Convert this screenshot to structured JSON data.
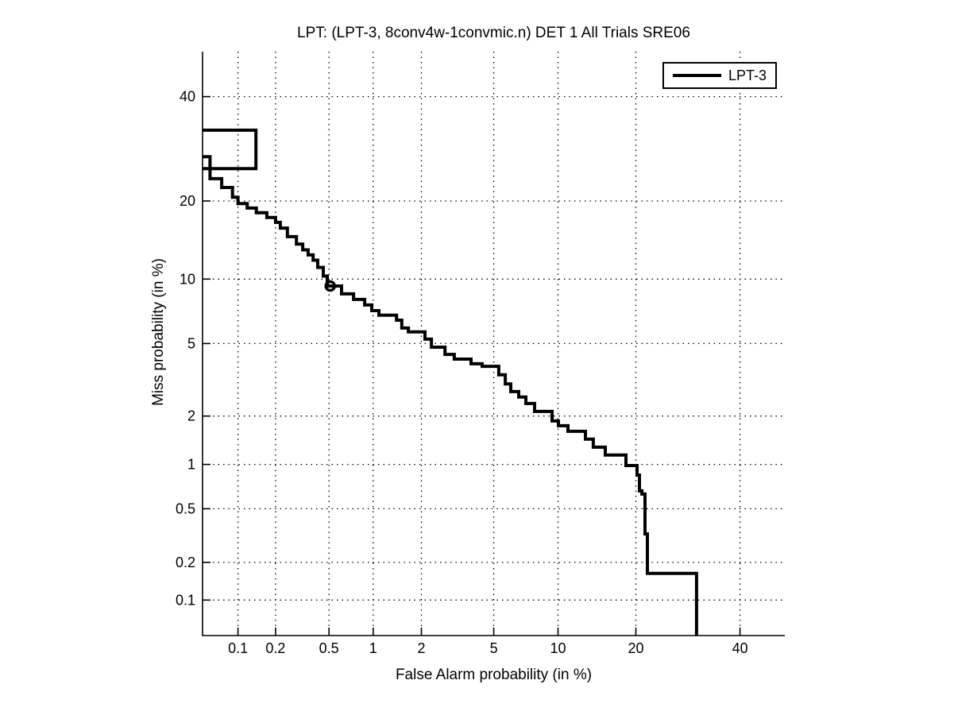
{
  "chart_data": {
    "type": "line",
    "chart_kind": "DET curve (normal-deviate / probit scale on both axes)",
    "title": "LPT: (LPT-3, 8conv4w-1convmic.n) DET 1 All Trials SRE06",
    "xlabel": "False Alarm probability (in %)",
    "ylabel": "Miss probability (in %)",
    "axis_range_pct": {
      "x": [
        0.05,
        50
      ],
      "y": [
        0.05,
        50
      ]
    },
    "x_tick_values": [
      0.1,
      0.2,
      0.5,
      1,
      2,
      5,
      10,
      20,
      40
    ],
    "x_tick_labels": [
      "0.1",
      "0.2",
      "0.5",
      "1",
      "2",
      "5",
      "10",
      "20",
      "40"
    ],
    "y_tick_values": [
      40,
      20,
      10,
      5,
      2,
      1,
      0.5,
      0.2,
      0.1
    ],
    "y_tick_labels": [
      "40",
      "20",
      "10",
      "5",
      "2",
      "1",
      "0.5",
      "0.2",
      "0.1"
    ],
    "grid": "dotted",
    "legend": {
      "position": "top-right",
      "entries": [
        {
          "label": "LPT-3",
          "color": "#000000"
        }
      ]
    },
    "colors": {
      "foreground": "#000000",
      "background": "#ffffff"
    },
    "series": [
      {
        "name": "LPT-3",
        "color": "#000000",
        "line_width": 4,
        "marker": {
          "shape": "circle",
          "fa_pct": 0.51,
          "miss_pct": 9.33
        },
        "clipped_start_box_fa_miss_pct": [
          [
            0.05,
            32.9
          ],
          [
            0.14,
            32.9
          ],
          [
            0.14,
            25.5
          ],
          [
            0.05,
            25.5
          ]
        ],
        "det_points_fa_miss_pct": [
          [
            0.05,
            27.7
          ],
          [
            0.058,
            27.7
          ],
          [
            0.058,
            23.7
          ],
          [
            0.073,
            23.7
          ],
          [
            0.073,
            22.2
          ],
          [
            0.09,
            22.2
          ],
          [
            0.09,
            20.6
          ],
          [
            0.1,
            20.6
          ],
          [
            0.1,
            19.6
          ],
          [
            0.119,
            19.6
          ],
          [
            0.119,
            18.9
          ],
          [
            0.141,
            18.9
          ],
          [
            0.141,
            18.2
          ],
          [
            0.171,
            18.2
          ],
          [
            0.171,
            17.5
          ],
          [
            0.2,
            17.5
          ],
          [
            0.2,
            16.8
          ],
          [
            0.218,
            16.8
          ],
          [
            0.218,
            16.0
          ],
          [
            0.247,
            16.0
          ],
          [
            0.247,
            14.85
          ],
          [
            0.289,
            14.85
          ],
          [
            0.289,
            13.9
          ],
          [
            0.322,
            13.9
          ],
          [
            0.322,
            13.2
          ],
          [
            0.353,
            13.2
          ],
          [
            0.353,
            12.6
          ],
          [
            0.384,
            12.6
          ],
          [
            0.384,
            12.0
          ],
          [
            0.415,
            12.0
          ],
          [
            0.415,
            11.2
          ],
          [
            0.455,
            11.2
          ],
          [
            0.455,
            10.3
          ],
          [
            0.486,
            10.3
          ],
          [
            0.486,
            9.33
          ],
          [
            0.612,
            9.33
          ],
          [
            0.612,
            8.61
          ],
          [
            0.74,
            8.61
          ],
          [
            0.74,
            8.13
          ],
          [
            0.879,
            8.13
          ],
          [
            0.879,
            7.67
          ],
          [
            0.979,
            7.67
          ],
          [
            0.979,
            7.22
          ],
          [
            1.09,
            7.22
          ],
          [
            1.09,
            6.87
          ],
          [
            1.41,
            6.87
          ],
          [
            1.41,
            6.51
          ],
          [
            1.52,
            6.51
          ],
          [
            1.52,
            5.97
          ],
          [
            1.67,
            5.97
          ],
          [
            1.67,
            5.71
          ],
          [
            2.1,
            5.71
          ],
          [
            2.1,
            5.26
          ],
          [
            2.29,
            5.26
          ],
          [
            2.29,
            4.79
          ],
          [
            2.74,
            4.79
          ],
          [
            2.74,
            4.4
          ],
          [
            3.09,
            4.4
          ],
          [
            3.09,
            4.16
          ],
          [
            3.81,
            4.16
          ],
          [
            3.81,
            3.93
          ],
          [
            4.36,
            3.93
          ],
          [
            4.36,
            3.81
          ],
          [
            5.3,
            3.81
          ],
          [
            5.3,
            3.43
          ],
          [
            5.71,
            3.43
          ],
          [
            5.71,
            3.06
          ],
          [
            6.07,
            3.06
          ],
          [
            6.07,
            2.77
          ],
          [
            6.63,
            2.77
          ],
          [
            6.63,
            2.58
          ],
          [
            7.17,
            2.58
          ],
          [
            7.17,
            2.37
          ],
          [
            7.87,
            2.37
          ],
          [
            7.87,
            2.13
          ],
          [
            9.42,
            2.13
          ],
          [
            9.42,
            1.87
          ],
          [
            10.04,
            1.87
          ],
          [
            10.04,
            1.75
          ],
          [
            11.02,
            1.75
          ],
          [
            11.02,
            1.62
          ],
          [
            12.99,
            1.62
          ],
          [
            12.99,
            1.45
          ],
          [
            13.96,
            1.45
          ],
          [
            13.96,
            1.29
          ],
          [
            15.52,
            1.29
          ],
          [
            15.52,
            1.15
          ],
          [
            18.46,
            1.15
          ],
          [
            18.46,
            0.984
          ],
          [
            20.19,
            0.984
          ],
          [
            20.19,
            0.851
          ],
          [
            20.57,
            0.851
          ],
          [
            20.57,
            0.666
          ],
          [
            20.96,
            0.666
          ],
          [
            20.96,
            0.633
          ],
          [
            21.48,
            0.633
          ],
          [
            21.48,
            0.329
          ],
          [
            21.87,
            0.329
          ],
          [
            21.87,
            0.164
          ],
          [
            30.9,
            0.164
          ],
          [
            30.9,
            0.05
          ]
        ]
      }
    ]
  }
}
